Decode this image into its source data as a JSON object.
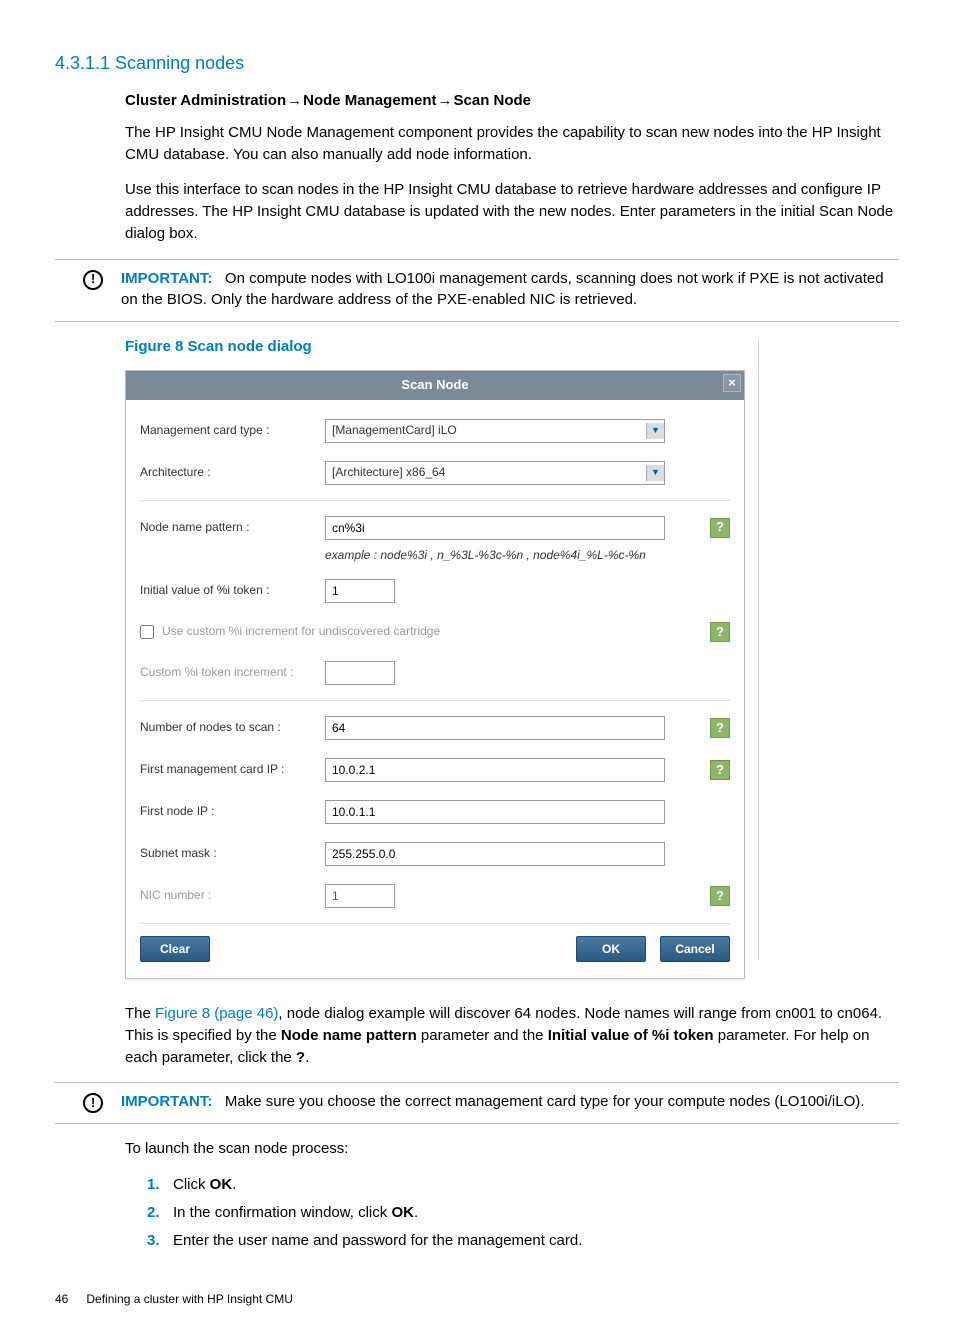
{
  "heading": "4.3.1.1 Scanning nodes",
  "breadcrumb": {
    "a": "Cluster Administration",
    "b": "Node Management",
    "c": "Scan Node"
  },
  "para1": "The HP Insight CMU Node Management component provides the capability to scan new nodes into the HP Insight CMU database. You can also manually add node information.",
  "para2": "Use this interface to scan nodes in the HP Insight CMU database to retrieve hardware addresses and configure IP addresses. The HP Insight CMU database is updated with the new nodes. Enter parameters in the initial Scan Node dialog box.",
  "important1": {
    "label": "IMPORTANT:",
    "text": "On compute nodes with LO100i management cards, scanning does not work if PXE is not activated on the BIOS. Only the hardware address of the PXE-enabled NIC is retrieved."
  },
  "figcaption": "Figure 8 Scan node dialog",
  "dialog": {
    "title": "Scan Node",
    "fields": {
      "mgmt_label": "Management card type :",
      "mgmt_value": "[ManagementCard] iLO",
      "arch_label": "Architecture :",
      "arch_value": "[Architecture] x86_64",
      "pattern_label": "Node name pattern :",
      "pattern_value": "cn%3i",
      "pattern_hint": "example : node%3i , n_%3L-%3c-%n , node%4i_%L-%c-%n",
      "initval_label": "Initial value of %i token :",
      "initval_value": "1",
      "checkbox_label": "Use custom %i increment for undiscovered cartridge",
      "custinc_label": "Custom %i token increment :",
      "custinc_value": "",
      "numnodes_label": "Number of nodes to scan :",
      "numnodes_value": "64",
      "firstmgmt_label": "First management card IP :",
      "firstmgmt_value": "10.0.2.1",
      "firstnode_label": "First node IP :",
      "firstnode_value": "10.0.1.1",
      "subnet_label": "Subnet mask :",
      "subnet_value": "255.255.0.0",
      "nic_label": "NIC number :",
      "nic_value": "1"
    },
    "buttons": {
      "clear": "Clear",
      "ok": "OK",
      "cancel": "Cancel"
    }
  },
  "after1_pre": "The ",
  "after1_link": "Figure 8 (page 46)",
  "after1_mid": ", node dialog example will discover 64 nodes. Node names will range from cn001 to cn064. This is specified by the ",
  "after1_b1": "Node name pattern",
  "after1_mid2": " parameter and the ",
  "after1_b2": "Initial value of %i token",
  "after1_end": " parameter. For help on each parameter, click the ",
  "after1_q": "?",
  "important2": {
    "label": "IMPORTANT:",
    "text": "Make sure you choose the correct management card type for your compute nodes (LO100i/iLO)."
  },
  "launch": "To launch the scan node process:",
  "steps": {
    "s1a": "Click ",
    "s1b": "OK",
    "s1c": ".",
    "s2a": "In the confirmation window, click ",
    "s2b": "OK",
    "s2c": ".",
    "s3": "Enter the user name and password for the management card."
  },
  "footer": {
    "page": "46",
    "title": "Defining a cluster with HP Insight CMU"
  }
}
